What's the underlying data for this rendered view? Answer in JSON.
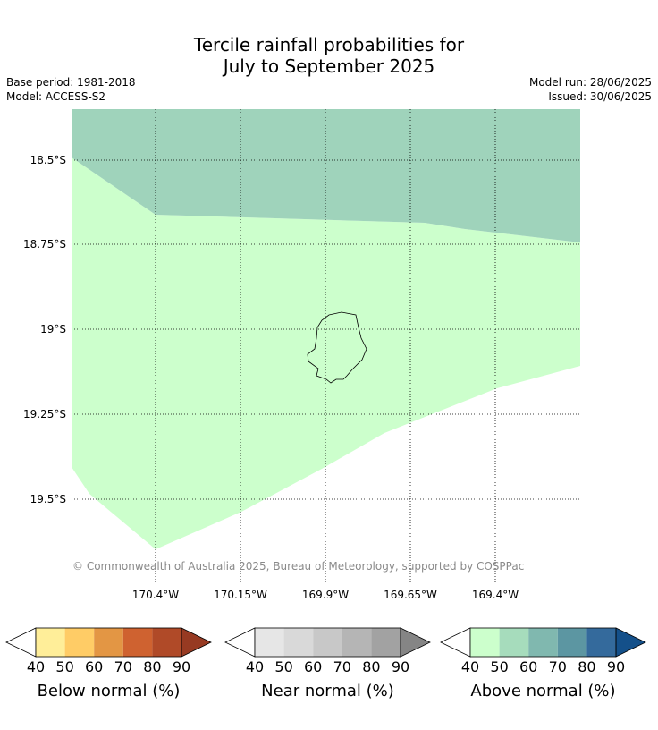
{
  "title_line1": "Tercile rainfall probabilities for",
  "title_line2": "July to September 2025",
  "base_period": "Base period: 1981-2018",
  "model": "Model: ACCESS-S2",
  "model_run": "Model run: 28/06/2025",
  "issued": "Issued: 30/06/2025",
  "credit": "© Commonwealth of Australia 2025, Bureau of Meteorology, supported by COSPPac",
  "lat_labels": [
    "18.5°S",
    "18.75°S",
    "19°S",
    "19.25°S",
    "19.5°S"
  ],
  "lon_labels": [
    "170.4°W",
    "170.15°W",
    "169.9°W",
    "169.65°W",
    "169.4°W"
  ],
  "map_colors": {
    "above_40": "#ccffcc",
    "above_50": "#9fd3bb",
    "no_signal": "#ffffff"
  },
  "colorbars": [
    {
      "title": "Below normal (%)",
      "ticks": [
        "40",
        "50",
        "60",
        "70",
        "80",
        "90"
      ],
      "low_color": "#ffffff",
      "colors": [
        "#ffee99",
        "#ffcc66",
        "#e39644",
        "#cf6230",
        "#b04a28"
      ],
      "high_color": "#973a22"
    },
    {
      "title": "Near normal (%)",
      "ticks": [
        "40",
        "50",
        "60",
        "70",
        "80",
        "90"
      ],
      "low_color": "#ffffff",
      "colors": [
        "#e6e6e6",
        "#d9d9d9",
        "#c8c8c8",
        "#b5b5b5",
        "#a2a2a2"
      ],
      "high_color": "#858585"
    },
    {
      "title": "Above normal (%)",
      "ticks": [
        "40",
        "50",
        "60",
        "70",
        "80",
        "90"
      ],
      "low_color": "#ffffff",
      "colors": [
        "#ccffcc",
        "#a6dcbc",
        "#80b8af",
        "#5c96a2",
        "#346a9c"
      ],
      "high_color": "#14508a"
    }
  ]
}
